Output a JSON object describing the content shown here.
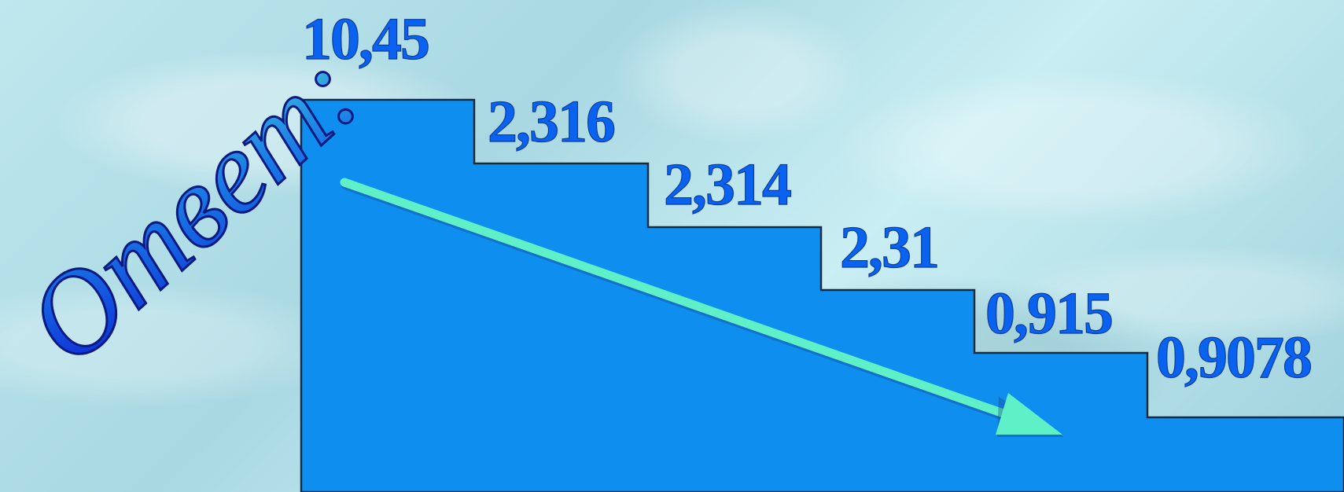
{
  "title": "Ответ:",
  "steps": [
    {
      "label": "10,45",
      "value": 10.45
    },
    {
      "label": "2,316",
      "value": 2.316
    },
    {
      "label": "2,314",
      "value": 2.314
    },
    {
      "label": "2,31",
      "value": 2.31
    },
    {
      "label": "0,915",
      "value": 0.915
    },
    {
      "label": "0,9078",
      "value": 0.9078
    }
  ],
  "colors": {
    "stairs_fill": "#0e8ff0",
    "stairs_outline": "#1a2a40",
    "labels": "#0a63f0",
    "arrow": "#5ff0c8",
    "title_gradient": [
      "#0b1fd6",
      "#4fd8d8"
    ]
  }
}
